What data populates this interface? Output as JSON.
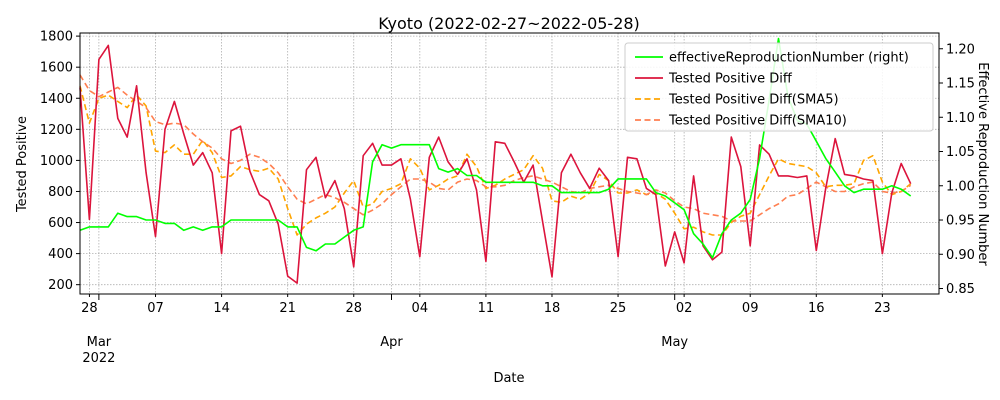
{
  "chart_data": {
    "type": "line",
    "title": "Kyoto (2022-02-27~2022-05-28)",
    "xlabel": "Date",
    "ylabel_left": "Tested Positive",
    "ylabel_right": "Effective Reproduction Number",
    "ylim_left": [
      140,
      1820
    ],
    "ylim_right": [
      0.842,
      1.223
    ],
    "yticks_left": [
      200,
      400,
      600,
      800,
      1000,
      1200,
      1400,
      1600,
      1800
    ],
    "yticks_right": [
      0.85,
      0.9,
      0.95,
      1.0,
      1.05,
      1.1,
      1.15,
      1.2
    ],
    "ytick_labels_right": [
      "0.85",
      "0.90",
      "0.95",
      "1.00",
      "1.05",
      "1.10",
      "1.15",
      "1.20"
    ],
    "start_date": "2022-02-27",
    "day_count": 92,
    "minor_ticks": [
      {
        "date": "2022-02-28",
        "label": "28"
      },
      {
        "date": "2022-03-07",
        "label": "07"
      },
      {
        "date": "2022-03-14",
        "label": "14"
      },
      {
        "date": "2022-03-21",
        "label": "21"
      },
      {
        "date": "2022-03-28",
        "label": "28"
      },
      {
        "date": "2022-04-04",
        "label": "04"
      },
      {
        "date": "2022-04-11",
        "label": "11"
      },
      {
        "date": "2022-04-18",
        "label": "18"
      },
      {
        "date": "2022-04-25",
        "label": "25"
      },
      {
        "date": "2022-05-02",
        "label": "02"
      },
      {
        "date": "2022-05-09",
        "label": "09"
      },
      {
        "date": "2022-05-16",
        "label": "16"
      },
      {
        "date": "2022-05-23",
        "label": "23"
      }
    ],
    "major_ticks": [
      {
        "date": "2022-03-01",
        "label": "Mar",
        "sublabel": "2022"
      },
      {
        "date": "2022-04-01",
        "label": "Apr",
        "sublabel": ""
      },
      {
        "date": "2022-05-01",
        "label": "May",
        "sublabel": ""
      }
    ],
    "grid": true,
    "legend_position": "top-right",
    "series": [
      {
        "name": "effectiveReproductionNumber (right)",
        "axis": "right",
        "color": "#00ff00",
        "dash": "solid",
        "values": [
          0.935,
          0.94,
          0.94,
          0.94,
          0.96,
          0.955,
          0.955,
          0.95,
          0.95,
          0.945,
          0.945,
          0.935,
          0.94,
          0.935,
          0.94,
          0.94,
          0.95,
          0.95,
          0.95,
          0.95,
          0.95,
          0.95,
          0.94,
          0.94,
          0.91,
          0.905,
          0.915,
          0.915,
          0.925,
          0.935,
          0.94,
          1.035,
          1.06,
          1.055,
          1.06,
          1.06,
          1.06,
          1.06,
          1.025,
          1.02,
          1.025,
          1.015,
          1.015,
          1.005,
          1.005,
          1.005,
          1.005,
          1.005,
          1.005,
          1.0,
          1.0,
          0.99,
          0.99,
          0.99,
          0.99,
          0.99,
          0.995,
          1.01,
          1.01,
          1.01,
          1.01,
          0.99,
          0.985,
          0.975,
          0.965,
          0.93,
          0.915,
          0.895,
          0.93,
          0.95,
          0.96,
          0.98,
          1.04,
          1.125,
          1.215,
          1.13,
          1.095,
          1.09,
          1.065,
          1.04,
          1.02,
          1.0,
          0.99,
          0.995,
          0.995,
          0.995,
          1.0,
          0.995,
          0.985
        ]
      },
      {
        "name": "Tested Positive Diff",
        "axis": "left",
        "color": "#dc143c",
        "dash": "solid",
        "values": [
          1470,
          620,
          1650,
          1740,
          1270,
          1150,
          1480,
          920,
          510,
          1200,
          1380,
          1170,
          970,
          1050,
          920,
          400,
          1190,
          1220,
          930,
          780,
          740,
          590,
          255,
          210,
          940,
          1020,
          760,
          870,
          690,
          315,
          1030,
          1110,
          970,
          970,
          1010,
          750,
          380,
          1020,
          1150,
          990,
          910,
          1010,
          810,
          350,
          1120,
          1110,
          990,
          860,
          970,
          610,
          250,
          920,
          1040,
          920,
          820,
          950,
          870,
          380,
          1020,
          1010,
          820,
          780,
          320,
          540,
          340,
          900,
          450,
          360,
          410,
          1150,
          960,
          450,
          1100,
          1040,
          900,
          900,
          890,
          900,
          420,
          820,
          1140,
          910,
          900,
          880,
          870,
          400,
          790,
          980,
          850
        ]
      },
      {
        "name": "Tested Positive Diff(SMA5)",
        "axis": "left",
        "color": "#ffa500",
        "dash": "dashed",
        "values": [
          1480,
          1240,
          1400,
          1420,
          1380,
          1340,
          1420,
          1350,
          1060,
          1050,
          1100,
          1040,
          1040,
          1130,
          1050,
          890,
          900,
          960,
          940,
          930,
          950,
          880,
          690,
          520,
          590,
          630,
          660,
          700,
          790,
          870,
          700,
          720,
          800,
          820,
          850,
          1010,
          950,
          810,
          840,
          880,
          900,
          1040,
          960,
          820,
          840,
          880,
          910,
          940,
          1030,
          950,
          740,
          730,
          770,
          750,
          790,
          910,
          870,
          790,
          790,
          810,
          780,
          790,
          750,
          660,
          560,
          570,
          540,
          520,
          520,
          600,
          640,
          660,
          780,
          900,
          1010,
          980,
          970,
          960,
          920,
          830,
          840,
          840,
          850,
          1000,
          1030,
          860,
          780,
          800,
          850
        ]
      },
      {
        "name": "Tested Positive Diff(SMA10)",
        "axis": "left",
        "color": "#ff7f50",
        "dash": "dashed",
        "values": [
          1550,
          1450,
          1410,
          1440,
          1470,
          1420,
          1380,
          1340,
          1250,
          1230,
          1240,
          1230,
          1170,
          1120,
          1080,
          1010,
          980,
          1000,
          1040,
          1020,
          980,
          920,
          830,
          750,
          720,
          750,
          780,
          760,
          730,
          690,
          650,
          680,
          720,
          780,
          830,
          880,
          880,
          860,
          820,
          810,
          860,
          880,
          870,
          830,
          830,
          840,
          870,
          890,
          900,
          880,
          860,
          830,
          800,
          790,
          820,
          830,
          840,
          820,
          800,
          790,
          780,
          810,
          790,
          740,
          700,
          690,
          660,
          650,
          640,
          610,
          610,
          610,
          650,
          690,
          720,
          770,
          780,
          820,
          860,
          830,
          800,
          800,
          830,
          850,
          860,
          800,
          790,
          800,
          840
        ]
      }
    ]
  }
}
